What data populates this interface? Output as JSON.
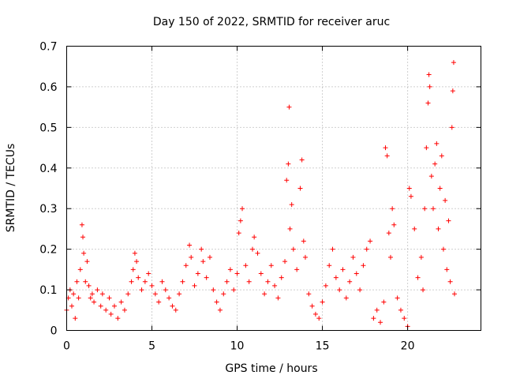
{
  "chart_data": {
    "type": "scatter",
    "title": "Day 150 of 2022, SRMTID for receiver aruc",
    "xlabel": "GPS time / hours",
    "ylabel": "SRMTID / TECUs",
    "xlim": [
      0,
      24.3
    ],
    "ylim": [
      0,
      0.7
    ],
    "x_ticks": [
      0,
      5,
      10,
      15,
      20
    ],
    "x_tick_labels": [
      "0",
      "5",
      "10",
      "15",
      "20"
    ],
    "y_ticks": [
      0,
      0.1,
      0.2,
      0.3,
      0.4,
      0.5,
      0.6,
      0.7
    ],
    "y_tick_labels": [
      "0",
      "0.1",
      "0.2",
      "0.3",
      "0.4",
      "0.5",
      "0.6",
      "0.7"
    ],
    "grid": true,
    "marker": "plus",
    "series": [
      {
        "name": "SRMTID",
        "color": "#ff0000",
        "points": [
          [
            0.0,
            0.05
          ],
          [
            0.1,
            0.08
          ],
          [
            0.2,
            0.1
          ],
          [
            0.3,
            0.06
          ],
          [
            0.4,
            0.09
          ],
          [
            0.5,
            0.03
          ],
          [
            0.6,
            0.12
          ],
          [
            0.7,
            0.08
          ],
          [
            0.8,
            0.15
          ],
          [
            0.9,
            0.26
          ],
          [
            0.95,
            0.23
          ],
          [
            1.0,
            0.19
          ],
          [
            1.1,
            0.12
          ],
          [
            1.2,
            0.17
          ],
          [
            1.3,
            0.11
          ],
          [
            1.4,
            0.08
          ],
          [
            1.5,
            0.09
          ],
          [
            1.6,
            0.07
          ],
          [
            1.8,
            0.1
          ],
          [
            2.0,
            0.06
          ],
          [
            2.1,
            0.09
          ],
          [
            2.3,
            0.05
          ],
          [
            2.5,
            0.08
          ],
          [
            2.6,
            0.04
          ],
          [
            2.8,
            0.06
          ],
          [
            3.0,
            0.03
          ],
          [
            3.2,
            0.07
          ],
          [
            3.4,
            0.05
          ],
          [
            3.6,
            0.09
          ],
          [
            3.8,
            0.12
          ],
          [
            3.9,
            0.15
          ],
          [
            4.0,
            0.19
          ],
          [
            4.1,
            0.17
          ],
          [
            4.2,
            0.13
          ],
          [
            4.4,
            0.1
          ],
          [
            4.6,
            0.12
          ],
          [
            4.8,
            0.14
          ],
          [
            5.0,
            0.11
          ],
          [
            5.2,
            0.09
          ],
          [
            5.4,
            0.07
          ],
          [
            5.6,
            0.12
          ],
          [
            5.8,
            0.1
          ],
          [
            6.0,
            0.08
          ],
          [
            6.2,
            0.06
          ],
          [
            6.4,
            0.05
          ],
          [
            6.6,
            0.09
          ],
          [
            6.8,
            0.12
          ],
          [
            7.0,
            0.16
          ],
          [
            7.2,
            0.21
          ],
          [
            7.3,
            0.18
          ],
          [
            7.5,
            0.11
          ],
          [
            7.7,
            0.14
          ],
          [
            7.9,
            0.2
          ],
          [
            8.0,
            0.17
          ],
          [
            8.2,
            0.13
          ],
          [
            8.4,
            0.18
          ],
          [
            8.6,
            0.1
          ],
          [
            8.8,
            0.07
          ],
          [
            9.0,
            0.05
          ],
          [
            9.2,
            0.09
          ],
          [
            9.4,
            0.12
          ],
          [
            9.6,
            0.15
          ],
          [
            9.8,
            0.1
          ],
          [
            10.0,
            0.14
          ],
          [
            10.1,
            0.24
          ],
          [
            10.2,
            0.27
          ],
          [
            10.3,
            0.3
          ],
          [
            10.5,
            0.16
          ],
          [
            10.7,
            0.12
          ],
          [
            10.9,
            0.2
          ],
          [
            11.0,
            0.23
          ],
          [
            11.2,
            0.19
          ],
          [
            11.4,
            0.14
          ],
          [
            11.6,
            0.09
          ],
          [
            11.8,
            0.12
          ],
          [
            12.0,
            0.16
          ],
          [
            12.2,
            0.11
          ],
          [
            12.4,
            0.08
          ],
          [
            12.6,
            0.13
          ],
          [
            12.8,
            0.17
          ],
          [
            12.9,
            0.37
          ],
          [
            13.0,
            0.41
          ],
          [
            13.05,
            0.55
          ],
          [
            13.1,
            0.25
          ],
          [
            13.2,
            0.31
          ],
          [
            13.3,
            0.2
          ],
          [
            13.5,
            0.15
          ],
          [
            13.7,
            0.35
          ],
          [
            13.8,
            0.42
          ],
          [
            13.9,
            0.22
          ],
          [
            14.0,
            0.18
          ],
          [
            14.2,
            0.09
          ],
          [
            14.4,
            0.06
          ],
          [
            14.6,
            0.04
          ],
          [
            14.8,
            0.03
          ],
          [
            15.0,
            0.07
          ],
          [
            15.2,
            0.11
          ],
          [
            15.4,
            0.16
          ],
          [
            15.6,
            0.2
          ],
          [
            15.8,
            0.13
          ],
          [
            16.0,
            0.1
          ],
          [
            16.2,
            0.15
          ],
          [
            16.4,
            0.08
          ],
          [
            16.6,
            0.12
          ],
          [
            16.8,
            0.18
          ],
          [
            17.0,
            0.14
          ],
          [
            17.2,
            0.1
          ],
          [
            17.4,
            0.16
          ],
          [
            17.6,
            0.2
          ],
          [
            17.8,
            0.22
          ],
          [
            18.0,
            0.03
          ],
          [
            18.2,
            0.05
          ],
          [
            18.4,
            0.02
          ],
          [
            18.6,
            0.07
          ],
          [
            18.7,
            0.45
          ],
          [
            18.8,
            0.43
          ],
          [
            18.9,
            0.24
          ],
          [
            19.0,
            0.18
          ],
          [
            19.1,
            0.3
          ],
          [
            19.2,
            0.26
          ],
          [
            19.4,
            0.08
          ],
          [
            19.6,
            0.05
          ],
          [
            19.8,
            0.03
          ],
          [
            20.0,
            0.01
          ],
          [
            20.1,
            0.35
          ],
          [
            20.2,
            0.33
          ],
          [
            20.4,
            0.25
          ],
          [
            20.6,
            0.13
          ],
          [
            20.8,
            0.18
          ],
          [
            20.9,
            0.1
          ],
          [
            21.0,
            0.3
          ],
          [
            21.1,
            0.45
          ],
          [
            21.2,
            0.56
          ],
          [
            21.25,
            0.63
          ],
          [
            21.3,
            0.6
          ],
          [
            21.4,
            0.38
          ],
          [
            21.5,
            0.3
          ],
          [
            21.6,
            0.41
          ],
          [
            21.7,
            0.46
          ],
          [
            21.8,
            0.25
          ],
          [
            21.9,
            0.35
          ],
          [
            22.0,
            0.43
          ],
          [
            22.1,
            0.2
          ],
          [
            22.2,
            0.32
          ],
          [
            22.3,
            0.15
          ],
          [
            22.4,
            0.27
          ],
          [
            22.5,
            0.12
          ],
          [
            22.6,
            0.5
          ],
          [
            22.65,
            0.59
          ],
          [
            22.7,
            0.66
          ],
          [
            22.75,
            0.09
          ]
        ]
      }
    ]
  }
}
